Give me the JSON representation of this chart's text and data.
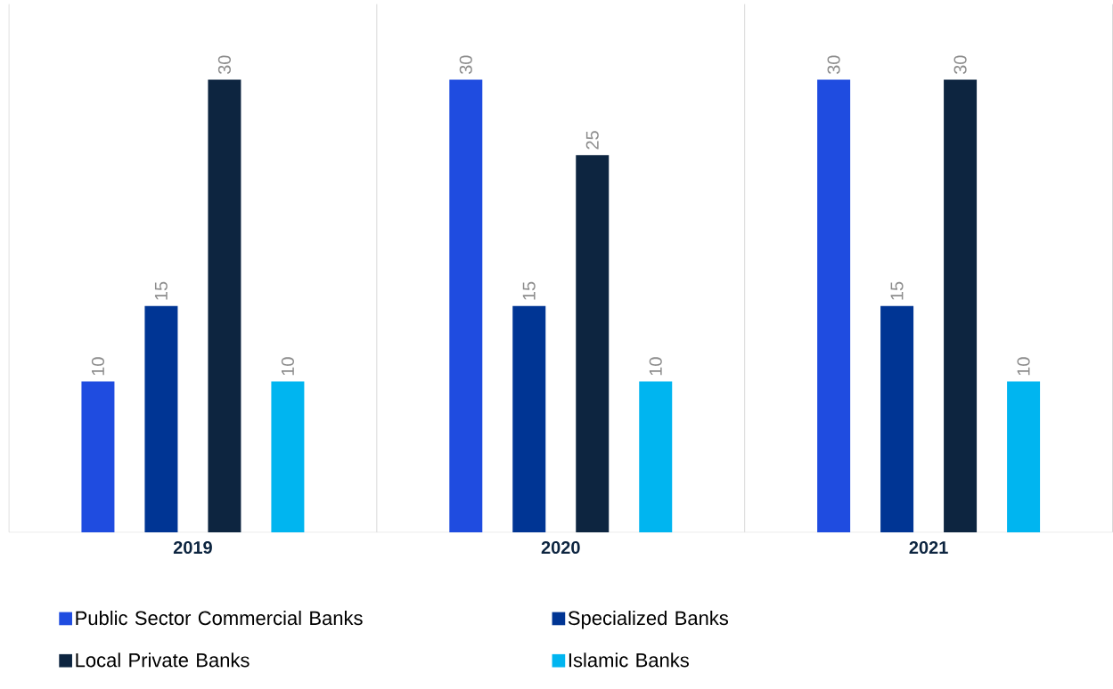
{
  "chart_data": {
    "type": "bar",
    "categories": [
      "2019",
      "2020",
      "2021"
    ],
    "series": [
      {
        "name": "Public Sector Commercial Banks",
        "color": "#1f4ce0",
        "values": [
          10,
          30,
          30
        ]
      },
      {
        "name": "Specialized Banks",
        "color": "#003594",
        "values": [
          15,
          15,
          15
        ]
      },
      {
        "name": "Local Private Banks",
        "color": "#0d2540",
        "values": [
          30,
          25,
          30
        ]
      },
      {
        "name": "Islamic Banks",
        "color": "#00b5f0",
        "values": [
          10,
          10,
          10
        ]
      }
    ],
    "data_labels": true,
    "grid": "x",
    "legend": "bottom"
  }
}
